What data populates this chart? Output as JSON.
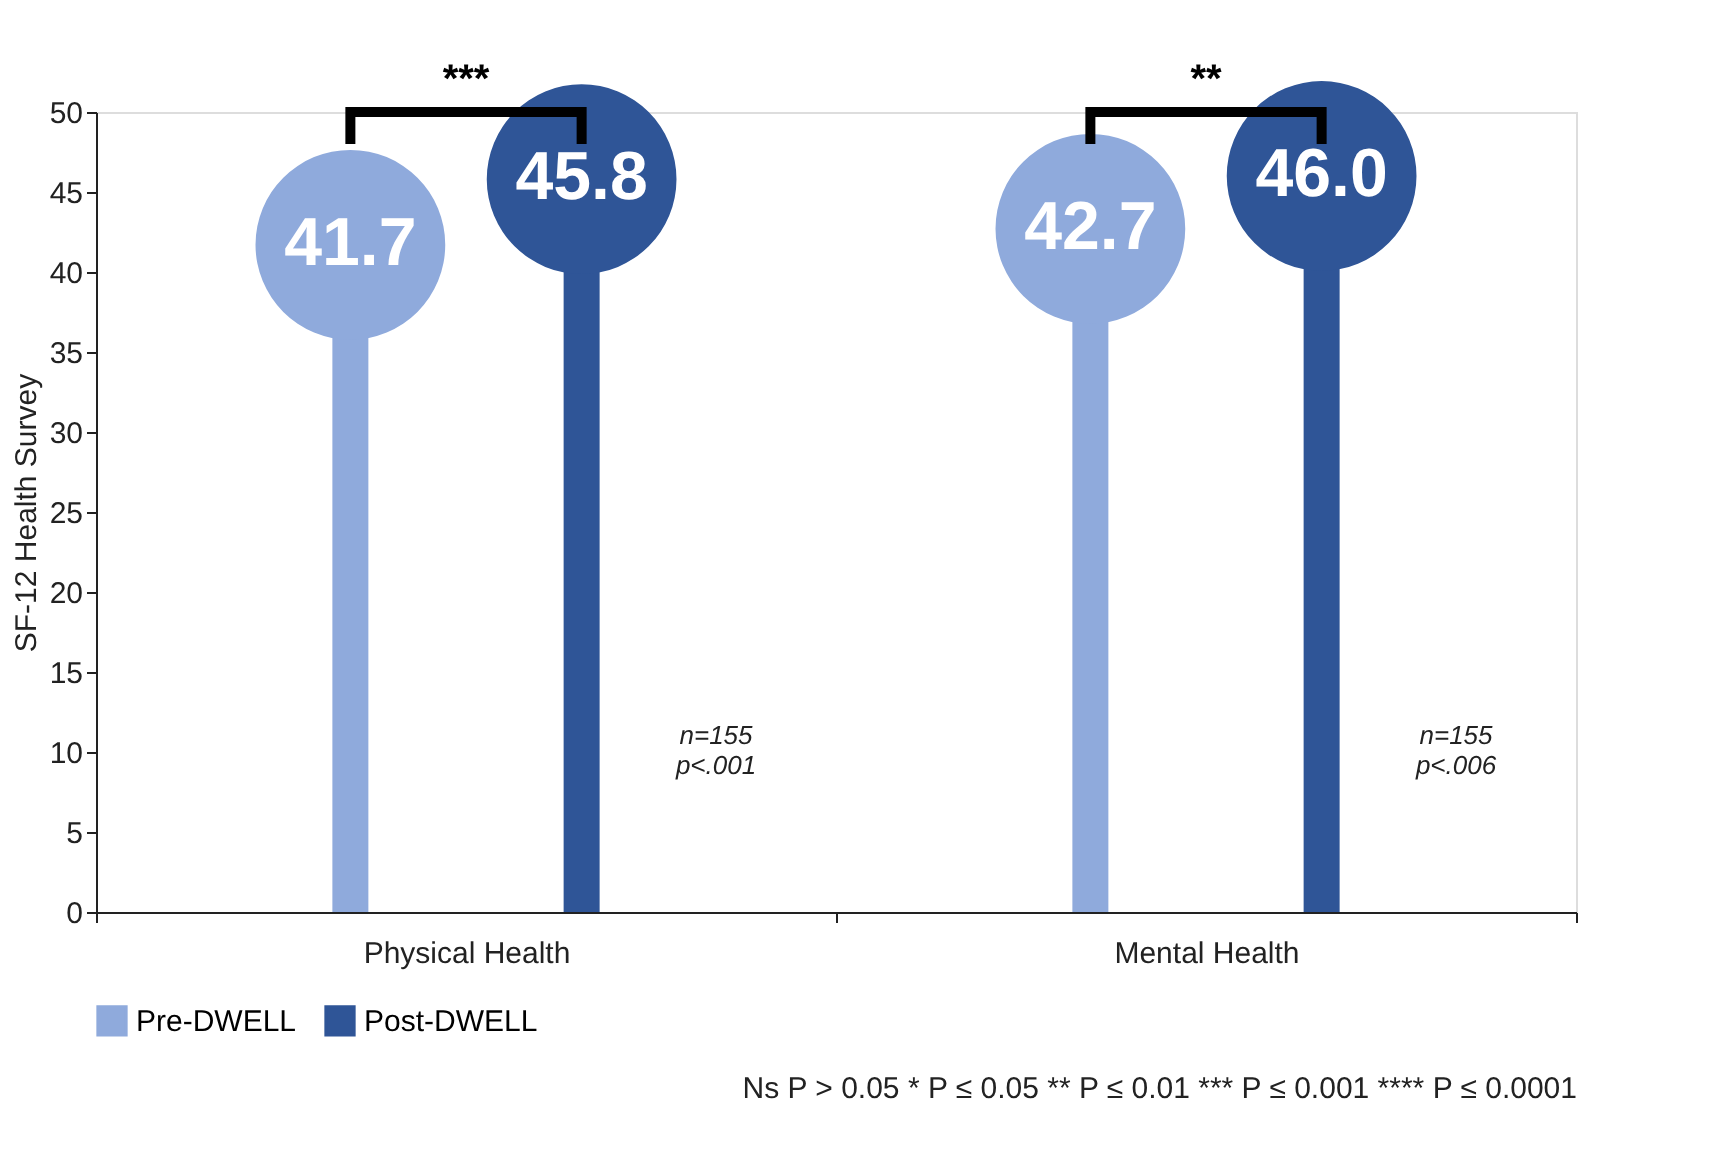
{
  "chart_data": {
    "type": "lollipop",
    "ylabel": "SF-12 Health Survey",
    "categories": [
      "Physical Health",
      "Mental Health"
    ],
    "series": [
      {
        "name": "Pre-DWELL",
        "color": "#8faadc",
        "values": [
          41.7,
          42.7
        ],
        "value_labels": [
          "41.7",
          "42.7"
        ]
      },
      {
        "name": "Post-DWELL",
        "color": "#2f5597",
        "values": [
          45.8,
          46.0
        ],
        "value_labels": [
          "45.8",
          "46.0"
        ]
      }
    ],
    "ylim": [
      0,
      50
    ],
    "yticks": [
      0,
      5,
      10,
      15,
      20,
      25,
      30,
      35,
      40,
      45,
      50
    ],
    "grid": false,
    "legend": "bottom",
    "marker": "circle",
    "annotations": [
      "n=155\np<.001",
      "n=155\np<.006",
      "***",
      "**",
      "Ns P > 0.05 * P ≤ 0.05 ** P ≤ 0.01 *** P ≤ 0.001 **** P ≤ 0.0001"
    ]
  }
}
